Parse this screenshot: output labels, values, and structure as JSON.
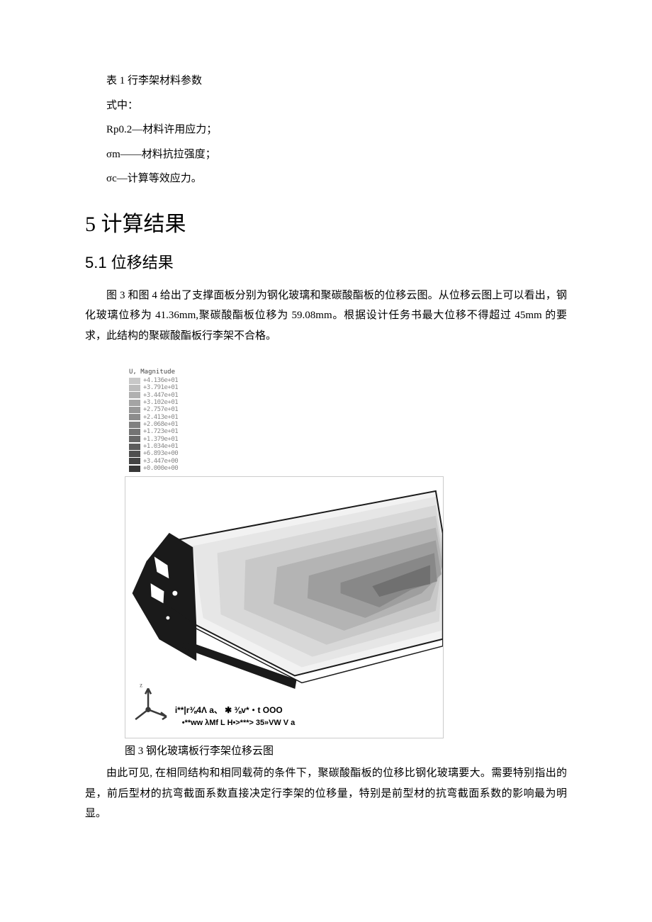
{
  "table_caption": "表 1 行李架材料参数",
  "definitions": {
    "intro": "式中：",
    "rp02": "Rp0.2—材料许用应力；",
    "sigma_m": "σm——材料抗拉强度；",
    "sigma_c": "σc—计算等效应力。"
  },
  "section5": {
    "title": "5 计算结果",
    "sub1": {
      "title": "5.1 位移结果",
      "para1": "图 3 和图 4 给出了支撑面板分别为钢化玻璃和聚碳酸酯板的位移云图。从位移云图上可以看出，钢化玻璃位移为 41.36mm,聚碳酸酯板位移为 59.08mm。根据设计任务书最大位移不得超过 45mm 的要求，此结构的聚碳酸酯板行李架不合格。",
      "para2": "由此可见, 在相同结构和相同载荷的条件下，聚碳酸酯板的位移比钢化玻璃要大。需要特别指出的是，前后型材的抗弯截面系数直接决定行李架的位移量，特别是前型材的抗弯截面系数的影响最为明显。"
    }
  },
  "figure3": {
    "caption": "图 3 钢化玻璃板行李架位移云图",
    "legend_title": "U, Magnitude",
    "legend": [
      {
        "label": "+4.136e+01",
        "color": "#c8c8c8"
      },
      {
        "label": "+3.791e+01",
        "color": "#bcbcbc"
      },
      {
        "label": "+3.447e+01",
        "color": "#b0b0b0"
      },
      {
        "label": "+3.102e+01",
        "color": "#a4a4a4"
      },
      {
        "label": "+2.757e+01",
        "color": "#989898"
      },
      {
        "label": "+2.413e+01",
        "color": "#8c8c8c"
      },
      {
        "label": "+2.068e+01",
        "color": "#808080"
      },
      {
        "label": "+1.723e+01",
        "color": "#747474"
      },
      {
        "label": "+1.379e+01",
        "color": "#686868"
      },
      {
        "label": "+1.034e+01",
        "color": "#5c5c5c"
      },
      {
        "label": "+6.893e+00",
        "color": "#505050"
      },
      {
        "label": "+3.447e+00",
        "color": "#444444"
      },
      {
        "label": "+0.000e+00",
        "color": "#383838"
      }
    ],
    "contour_bands": [
      "#f2f2f2",
      "#e6e6e6",
      "#d8d8d8",
      "#c8c8c8",
      "#b4b4b4",
      "#9e9e9e",
      "#888888",
      "#707070"
    ],
    "bracket_color": "#1a1a1a",
    "outline_color": "#1a1a1a",
    "background_color": "#ffffff",
    "annot1": "i**|r⅜4Λ a、 ✱  ⅜v*・t OOO",
    "annot2": "•**ww λMf L  H•>***> 35»VW V a",
    "triad_color": "#3a3a3a"
  }
}
